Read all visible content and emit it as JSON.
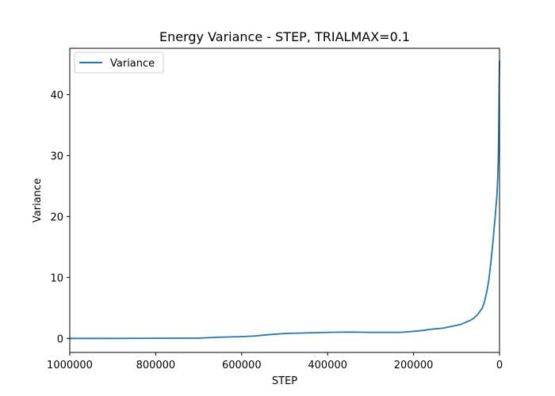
{
  "chart_data": {
    "type": "line",
    "title": "Energy Variance - STEP, TRIALMAX=0.1",
    "xlabel": "STEP",
    "ylabel": "Variance",
    "xlim": [
      1000000,
      0
    ],
    "ylim": [
      -2.3,
      47.6
    ],
    "xticks": [
      1000000,
      800000,
      600000,
      400000,
      200000,
      0
    ],
    "xtick_labels": [
      "1000000",
      "800000",
      "600000",
      "400000",
      "200000",
      "0"
    ],
    "yticks": [
      0,
      10,
      20,
      30,
      40
    ],
    "ytick_labels": [
      "0",
      "10",
      "20",
      "30",
      "40"
    ],
    "grid": false,
    "legend_position": "upper-left",
    "series": [
      {
        "name": "Variance",
        "color": "#1f77b4",
        "x": [
          1000000,
          900000,
          800000,
          700000,
          650000,
          600000,
          570000,
          540000,
          500000,
          480000,
          450000,
          400000,
          350000,
          300000,
          260000,
          230000,
          210000,
          180000,
          160000,
          130000,
          110000,
          90000,
          80000,
          70000,
          60000,
          50000,
          40000,
          35000,
          30000,
          25000,
          20000,
          15000,
          12000,
          10000,
          8000,
          6000,
          4000,
          3000,
          2000,
          1500,
          1000,
          500,
          0
        ],
        "y": [
          0.0,
          0.0,
          0.02,
          0.05,
          0.2,
          0.3,
          0.4,
          0.6,
          0.8,
          0.85,
          0.9,
          1.0,
          1.05,
          1.0,
          1.0,
          1.0,
          1.1,
          1.3,
          1.5,
          1.7,
          2.0,
          2.3,
          2.6,
          2.9,
          3.3,
          4.0,
          5.0,
          6.0,
          7.5,
          9.5,
          12.5,
          16.0,
          18.5,
          20.0,
          21.8,
          23.5,
          26.5,
          29.0,
          33.0,
          36.0,
          40.0,
          43.0,
          45.5
        ]
      }
    ]
  }
}
